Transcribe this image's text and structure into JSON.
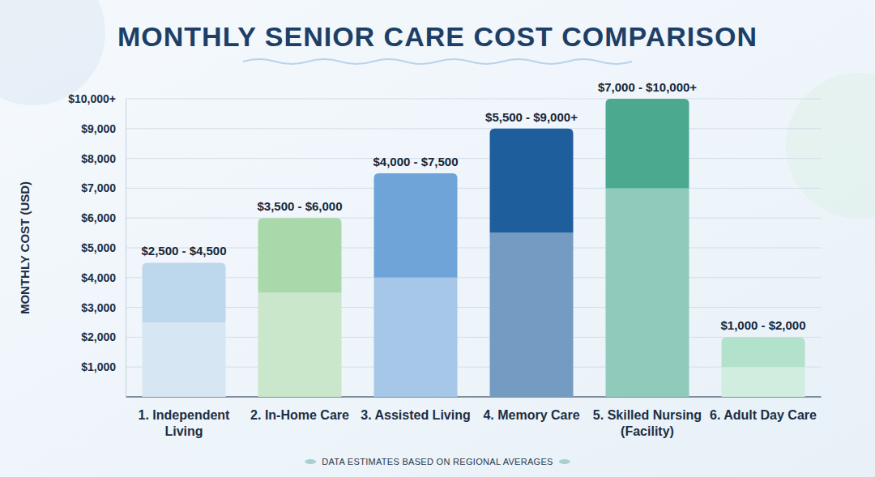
{
  "chart_data": {
    "type": "bar",
    "title": "MONTHLY SENIOR CARE COST COMPARISON",
    "y_label": "MONTHLY COST (USD)",
    "footnote": "DATA ESTIMATES BASED ON REGIONAL AVERAGES",
    "categories": [
      "1. Independent Living",
      "2. In-Home Care",
      "3. Assisted Living",
      "4. Memory Care",
      "5. Skilled Nursing (Facility)",
      "6. Adult Day Care"
    ],
    "low": [
      2500,
      3500,
      4000,
      5500,
      7000,
      1000
    ],
    "values": [
      4500,
      6000,
      7500,
      9000,
      10000,
      2000
    ],
    "value_labels": [
      "$2,500 - $4,500",
      "$3,500 - $6,000",
      "$4,000 - $7,500",
      "$5,500 - $9,000+",
      "$7,000 - $10,000+",
      "$1,000 - $2,000"
    ],
    "colors": [
      "#bdd7ec",
      "#a9d9ab",
      "#6fa4d9",
      "#1f5e9d",
      "#4ba98f",
      "#b3e2cc"
    ],
    "ylim": [
      0,
      10000
    ],
    "yticks": [
      {
        "value": 1000,
        "label": "$1,000"
      },
      {
        "value": 2000,
        "label": "$2,000"
      },
      {
        "value": 3000,
        "label": "$3,000"
      },
      {
        "value": 4000,
        "label": "$4,000"
      },
      {
        "value": 5000,
        "label": "$5,000"
      },
      {
        "value": 6000,
        "label": "$6,000"
      },
      {
        "value": 7000,
        "label": "$7,000"
      },
      {
        "value": 8000,
        "label": "$8,000"
      },
      {
        "value": 9000,
        "label": "$9,000"
      },
      {
        "value": 10000,
        "label": "$10,000+"
      }
    ],
    "grid": true,
    "data_labels": true
  }
}
